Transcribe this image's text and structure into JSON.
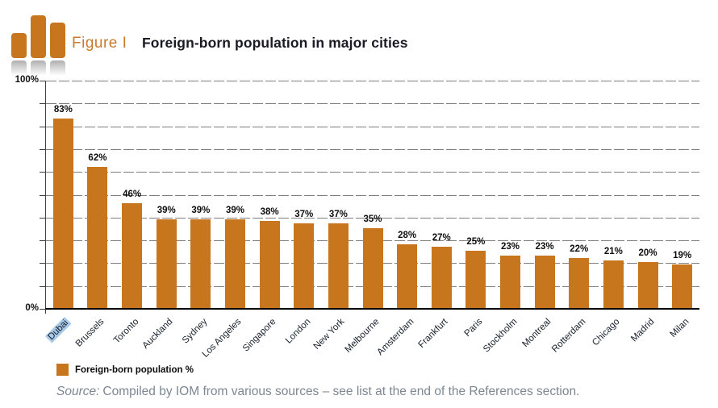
{
  "header": {
    "figure_label": "Figure I",
    "title": "Foreign-born population in major cities"
  },
  "chart_data": {
    "type": "bar",
    "title": "Foreign-born population in major cities",
    "categories": [
      "Dubai",
      "Brussels",
      "Toronto",
      "Auckland",
      "Sydney",
      "Los Angeles",
      "Singapore",
      "London",
      "New York",
      "Melbourne",
      "Amsterdam",
      "Frankfurt",
      "Paris",
      "Stockholm",
      "Montreal",
      "Rotterdam",
      "Chicago",
      "Madrid",
      "Milan"
    ],
    "values": [
      83,
      62,
      46,
      39,
      39,
      39,
      38,
      37,
      37,
      35,
      28,
      27,
      25,
      23,
      23,
      22,
      21,
      20,
      19
    ],
    "value_suffix": "%",
    "xlabel": "",
    "ylabel": "",
    "ylim": [
      0,
      100
    ],
    "ytick_step": 10,
    "ytick_labels_shown": [
      "100%",
      "0%"
    ],
    "grid": "horizontal dashed gray every 10%",
    "legend_entries": [
      "Foreign-born population %"
    ],
    "legend_position": "bottom-left",
    "highlighted_category": "Dubai",
    "bar_color": "#C8761E"
  },
  "y_axis": {
    "top_label": "100%",
    "bottom_label": "0%"
  },
  "legend": {
    "label": "Foreign-born population %"
  },
  "source": {
    "prefix": "Source:",
    "text": "Compiled by IOM from various sources – see list at the end of the References section."
  },
  "colors": {
    "bar": "#C8761E",
    "accent_orange": "#C87B2A",
    "grid": "#7F7F7F",
    "title_text": "#1A1A24",
    "source_text": "#7C8792",
    "highlight_blue": "#A9C9E8"
  }
}
